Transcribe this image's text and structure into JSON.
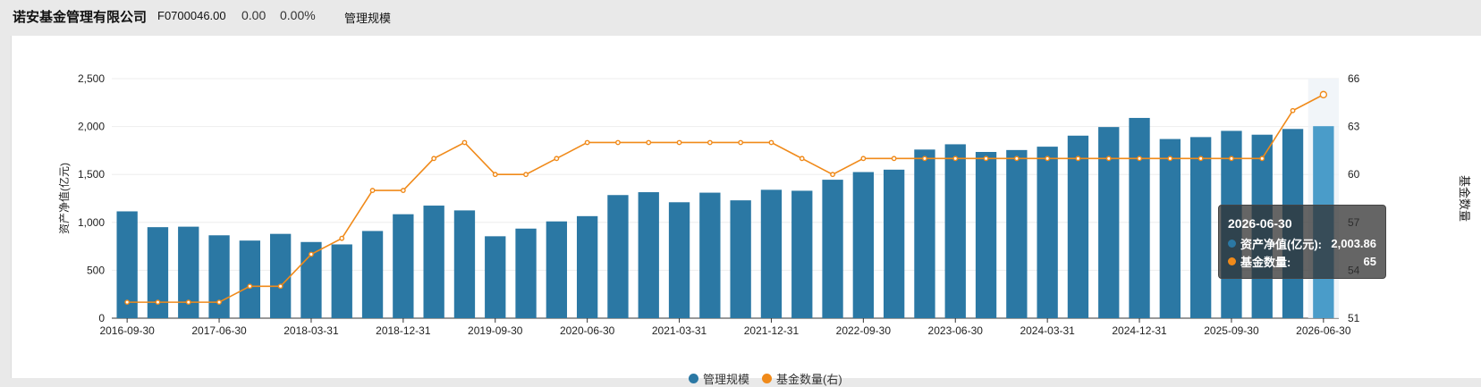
{
  "header": {
    "company": "诺安基金管理有限公司",
    "code": "F0700046.00",
    "nav": "0.00",
    "pct": "0.00%",
    "tab": "管理规模"
  },
  "colors": {
    "bar": "#2b78a4",
    "bar_highlight": "#4a9cc9",
    "line": "#f08a1a"
  },
  "tooltip": {
    "title": "2026-06-30",
    "row1_label": "资产净值(亿元):",
    "row1_value": "2,003.86",
    "row2_label": "基金数量:",
    "row2_value": "65"
  },
  "legend": {
    "bar_label": "管理规模",
    "line_label": "基金数量(右)"
  },
  "chart_data": {
    "type": "bar",
    "ylabel": "资产净值(亿元)",
    "y2label": "基金数量",
    "ylim": [
      0,
      2500
    ],
    "y2lim": [
      51,
      66
    ],
    "yticks": [
      "0",
      "500",
      "1,000",
      "1,500",
      "2,000",
      "2,500"
    ],
    "y2ticks": [
      "51",
      "54",
      "57",
      "60",
      "63",
      "66"
    ],
    "categories": [
      "2016-09-30",
      "2016-12-31",
      "2017-03-31",
      "2017-06-30",
      "2017-09-30",
      "2017-12-31",
      "2018-03-31",
      "2018-06-30",
      "2018-09-30",
      "2018-12-31",
      "2019-03-31",
      "2019-06-30",
      "2019-09-30",
      "2019-12-31",
      "2020-03-31",
      "2020-06-30",
      "2020-09-30",
      "2020-12-31",
      "2021-03-31",
      "2021-06-30",
      "2021-09-30",
      "2021-12-31",
      "2022-03-31",
      "2022-06-30",
      "2022-09-30",
      "2022-12-31",
      "2023-03-31",
      "2023-06-30",
      "2023-09-30",
      "2023-12-31",
      "2024-03-31",
      "2024-06-30",
      "2024-09-30",
      "2024-12-31",
      "2025-03-31",
      "2025-06-30",
      "2025-09-30",
      "2025-12-31",
      "2026-03-31",
      "2026-06-30"
    ],
    "xtick_labels": [
      "2016-09-30",
      "2017-06-30",
      "2018-03-31",
      "2018-12-31",
      "2019-09-30",
      "2020-06-30",
      "2021-03-31",
      "2021-12-31",
      "2022-09-30",
      "2023-06-30",
      "2024-03-31",
      "2024-12-31",
      "2025-09-30",
      "2026-06-30"
    ],
    "series": [
      {
        "name": "管理规模",
        "type": "bar",
        "values": [
          1115,
          950,
          955,
          865,
          810,
          880,
          795,
          770,
          910,
          1085,
          1175,
          1125,
          855,
          935,
          1010,
          1065,
          1285,
          1315,
          1210,
          1310,
          1230,
          1340,
          1330,
          1445,
          1525,
          1550,
          1760,
          1815,
          1735,
          1755,
          1790,
          1905,
          1995,
          2090,
          1870,
          1890,
          1955,
          1915,
          1975,
          2003.86
        ]
      },
      {
        "name": "基金数量(右)",
        "type": "line",
        "values": [
          52,
          52,
          52,
          52,
          53,
          53,
          55,
          56,
          59,
          59,
          61,
          62,
          60,
          60,
          61,
          62,
          62,
          62,
          62,
          62,
          62,
          62,
          61,
          60,
          61,
          61,
          61,
          61,
          61,
          61,
          61,
          61,
          61,
          61,
          61,
          61,
          61,
          61,
          64,
          65
        ]
      }
    ],
    "highlight_index": 39
  }
}
